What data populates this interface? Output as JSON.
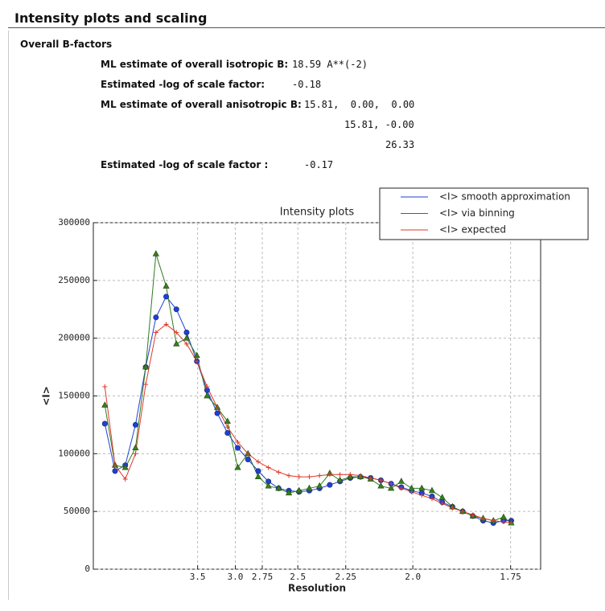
{
  "header": {
    "title": "Intensity plots and scaling"
  },
  "section": {
    "title": "Overall B-factors",
    "rows": [
      {
        "label": "ML estimate of overall isotropic B:",
        "values": [
          "18.59 A**(-2)"
        ]
      },
      {
        "label": "Estimated -log of scale factor:",
        "values": [
          "-0.18"
        ]
      },
      {
        "label": "ML estimate of overall anisotropic B:",
        "values": [
          "15.81,  0.00,  0.00",
          "15.81, -0.00",
          "26.33"
        ]
      },
      {
        "label": "Estimated -log of scale factor :",
        "values": [
          "-0.17"
        ]
      }
    ]
  },
  "chart_data": {
    "type": "line",
    "title": "Intensity plots",
    "x_label": "Resolution",
    "y_label": "<I>",
    "x": [
      0.009,
      0.017,
      0.025,
      0.033,
      0.041,
      0.049,
      0.057,
      0.065,
      0.073,
      0.081,
      0.089,
      0.097,
      0.105,
      0.113,
      0.121,
      0.129,
      0.137,
      0.145,
      0.153,
      0.161,
      0.169,
      0.177,
      0.185,
      0.193,
      0.201,
      0.209,
      0.217,
      0.225,
      0.233,
      0.241,
      0.249,
      0.257,
      0.265,
      0.273,
      0.281,
      0.289,
      0.297,
      0.305,
      0.313,
      0.321,
      0.327
    ],
    "series": [
      {
        "name": "<I> smooth approximation",
        "color": "#1f3fd8",
        "marker": "circle",
        "values": [
          126000,
          85000,
          90000,
          125000,
          175000,
          218000,
          236000,
          225000,
          205000,
          180000,
          155000,
          135000,
          118000,
          105000,
          95000,
          85000,
          76000,
          70000,
          68000,
          67000,
          68000,
          70000,
          73000,
          76000,
          79000,
          80000,
          79000,
          77000,
          74000,
          71000,
          68000,
          66000,
          63000,
          58000,
          54000,
          50000,
          46000,
          42000,
          40000,
          42000,
          42000
        ]
      },
      {
        "name": "<I> via binning",
        "color": "#2e7d1e",
        "marker": "triangle",
        "values": [
          142000,
          90000,
          88000,
          105000,
          175000,
          273000,
          245000,
          195000,
          200000,
          185000,
          150000,
          140000,
          128000,
          88000,
          100000,
          80000,
          72000,
          70000,
          66000,
          68000,
          70000,
          72000,
          83000,
          77000,
          80000,
          80000,
          78000,
          72000,
          70000,
          76000,
          70000,
          70000,
          68000,
          62000,
          54000,
          50000,
          46000,
          44000,
          42000,
          45000,
          40000
        ]
      },
      {
        "name": "<I> expected",
        "color": "#e03a2a",
        "marker": "plus",
        "values": [
          158000,
          90000,
          78000,
          100000,
          160000,
          205000,
          212000,
          205000,
          195000,
          180000,
          158000,
          140000,
          123000,
          110000,
          100000,
          93000,
          88000,
          84000,
          81000,
          80000,
          80000,
          81000,
          82000,
          82000,
          82000,
          81000,
          79000,
          77000,
          74000,
          70000,
          67000,
          64000,
          61000,
          57000,
          53000,
          50000,
          47000,
          44000,
          42000,
          41000,
          40000
        ]
      }
    ],
    "xlim": [
      0,
      0.35
    ],
    "xticks": [
      {
        "value": 0.0816,
        "label": "3.5"
      },
      {
        "value": 0.1111,
        "label": "3.0"
      },
      {
        "value": 0.1322,
        "label": "2.75"
      },
      {
        "value": 0.16,
        "label": "2.5"
      },
      {
        "value": 0.1975,
        "label": "2.25"
      },
      {
        "value": 0.25,
        "label": "2.0"
      },
      {
        "value": 0.3265,
        "label": "1.75"
      }
    ],
    "ylim": [
      0,
      300000
    ],
    "yticks": [
      0,
      50000,
      100000,
      150000,
      200000,
      250000,
      300000
    ],
    "grid": true,
    "legend": "upper right"
  }
}
